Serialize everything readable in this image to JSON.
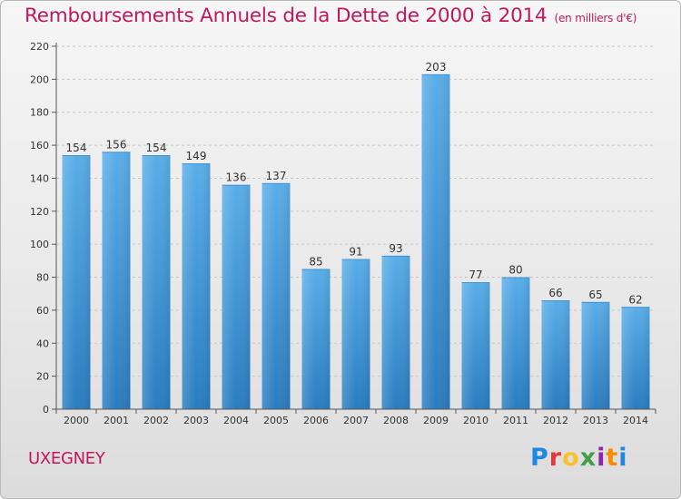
{
  "title": {
    "main": "Remboursements Annuels de la Dette de 2000 à 2014",
    "unit": "(en milliers d'€)"
  },
  "commune": "UXEGNEY",
  "logo": {
    "letters": [
      "P",
      "r",
      "o",
      "x",
      "i",
      "t",
      "i"
    ]
  },
  "colors": {
    "title": "#c2185b",
    "bar_top": "#5aade8",
    "bar_bottom": "#2a7cc0",
    "grid": "#c8c8c8",
    "axis": "#555555",
    "label": "#333333"
  },
  "chart_data": {
    "type": "bar",
    "title": "Remboursements Annuels de la Dette de 2000 à 2014",
    "subtitle": "(en milliers d'€)",
    "categories": [
      "2000",
      "2001",
      "2002",
      "2003",
      "2004",
      "2005",
      "2006",
      "2007",
      "2008",
      "2009",
      "2010",
      "2011",
      "2012",
      "2013",
      "2014"
    ],
    "values": [
      154,
      156,
      154,
      149,
      136,
      137,
      85,
      91,
      93,
      203,
      77,
      80,
      66,
      65,
      62
    ],
    "xlabel": "",
    "ylabel": "",
    "ylim": [
      0,
      220
    ],
    "yticks": [
      0,
      20,
      40,
      60,
      80,
      100,
      120,
      140,
      160,
      180,
      200,
      220
    ],
    "grid": true,
    "data_labels": true,
    "legend": "none"
  }
}
